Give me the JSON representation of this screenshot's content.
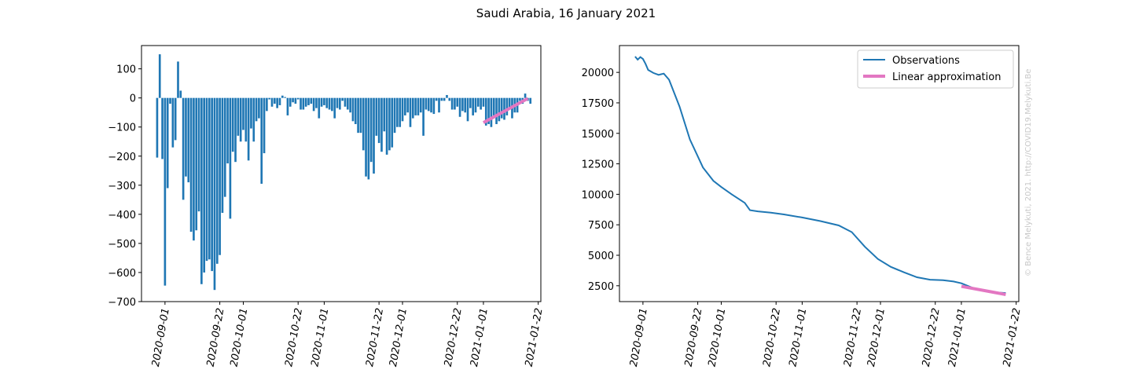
{
  "title": "Saudi Arabia, 16 January 2021",
  "watermark": "© Bence Melykuti, 2021. http://COVID19.Melykuti.Be",
  "colors": {
    "bars": "#1f77b4",
    "line": "#1f77b4",
    "approx": "#e377c2",
    "watermark": "#c8c8c8"
  },
  "chart_data": [
    {
      "type": "bar",
      "ylim": [
        -700,
        180
      ],
      "yticks": [
        100,
        0,
        -100,
        -200,
        -300,
        -400,
        -500,
        -600,
        -700
      ],
      "ytick_labels": [
        "100",
        "0",
        "−100",
        "−200",
        "−300",
        "−400",
        "−500",
        "−600",
        "−700"
      ],
      "xlim": [
        "2020-08-23",
        "2021-01-23"
      ],
      "xticks": [
        "2020-09-01",
        "2020-09-22",
        "2020-10-01",
        "2020-10-22",
        "2020-11-01",
        "2020-11-22",
        "2020-12-01",
        "2020-12-22",
        "2021-01-01",
        "2021-01-22"
      ],
      "start_date": "2020-08-29",
      "values": [
        -205,
        150,
        -210,
        -645,
        -310,
        -20,
        -170,
        -145,
        125,
        25,
        -350,
        -270,
        -290,
        -460,
        -490,
        -455,
        -390,
        -640,
        -600,
        -560,
        -555,
        -595,
        -660,
        -570,
        -540,
        -395,
        -340,
        -225,
        -415,
        -185,
        -220,
        -130,
        -150,
        -110,
        -150,
        -215,
        -105,
        -150,
        -80,
        -70,
        -295,
        -190,
        -45,
        -5,
        -30,
        -20,
        -35,
        -25,
        8,
        3,
        -60,
        -30,
        -15,
        -20,
        -5,
        -40,
        -40,
        -30,
        -25,
        -20,
        -45,
        -35,
        -70,
        -30,
        -25,
        -35,
        -40,
        -45,
        -70,
        -35,
        -40,
        -10,
        -30,
        -40,
        -50,
        -80,
        -90,
        -120,
        -120,
        -180,
        -270,
        -280,
        -220,
        -260,
        -130,
        -155,
        -185,
        -115,
        -195,
        -180,
        -170,
        -120,
        -100,
        -100,
        -80,
        -60,
        -50,
        -100,
        -70,
        -60,
        -60,
        -50,
        -130,
        -40,
        -45,
        -50,
        -55,
        -10,
        -50,
        -10,
        -10,
        10,
        -10,
        -40,
        -40,
        -30,
        -65,
        -45,
        -50,
        -80,
        -35,
        -60,
        -50,
        -30,
        -40,
        -30,
        -95,
        -90,
        -100,
        -60,
        -90,
        -80,
        -70,
        -75,
        -60,
        -40,
        -70,
        -50,
        -50,
        -10,
        -20,
        15,
        -10,
        -20
      ],
      "linear_approximation": {
        "x": [
          "2021-01-01",
          "2021-01-18"
        ],
        "y": [
          -85,
          -2
        ]
      }
    },
    {
      "type": "line",
      "ylim": [
        1200,
        22200
      ],
      "yticks": [
        2500,
        5000,
        7500,
        10000,
        12500,
        15000,
        17500,
        20000
      ],
      "xlim": [
        "2020-08-23",
        "2021-01-23"
      ],
      "xticks": [
        "2020-09-01",
        "2020-09-22",
        "2020-10-01",
        "2020-10-22",
        "2020-11-01",
        "2020-11-22",
        "2020-12-01",
        "2020-12-22",
        "2021-01-01",
        "2021-01-22"
      ],
      "legend": {
        "position": "top-right",
        "entries": [
          "Observations",
          "Linear approximation"
        ]
      },
      "series": [
        {
          "name": "Observations",
          "x": [
            "2020-08-29",
            "2020-08-30",
            "2020-08-31",
            "2020-09-01",
            "2020-09-02",
            "2020-09-03",
            "2020-09-05",
            "2020-09-07",
            "2020-09-08",
            "2020-09-09",
            "2020-09-11",
            "2020-09-15",
            "2020-09-19",
            "2020-09-24",
            "2020-09-28",
            "2020-10-01",
            "2020-10-05",
            "2020-10-10",
            "2020-10-12",
            "2020-10-15",
            "2020-10-20",
            "2020-10-25",
            "2020-11-01",
            "2020-11-08",
            "2020-11-12",
            "2020-11-15",
            "2020-11-20",
            "2020-11-25",
            "2020-11-30",
            "2020-12-05",
            "2020-12-10",
            "2020-12-15",
            "2020-12-20",
            "2020-12-25",
            "2020-12-29",
            "2021-01-01",
            "2021-01-05",
            "2021-01-10",
            "2021-01-15",
            "2021-01-18"
          ],
          "y": [
            21300,
            21050,
            21250,
            21100,
            20700,
            20200,
            19950,
            19800,
            19850,
            19900,
            19400,
            17200,
            14500,
            12200,
            11100,
            10600,
            10000,
            9300,
            8700,
            8600,
            8500,
            8350,
            8100,
            7800,
            7600,
            7450,
            6900,
            5700,
            4700,
            4050,
            3600,
            3200,
            3000,
            2950,
            2850,
            2700,
            2350,
            2050,
            1950,
            1900
          ]
        },
        {
          "name": "Linear approximation",
          "x": [
            "2021-01-01",
            "2021-01-18"
          ],
          "y": [
            2450,
            1780
          ]
        }
      ]
    }
  ]
}
